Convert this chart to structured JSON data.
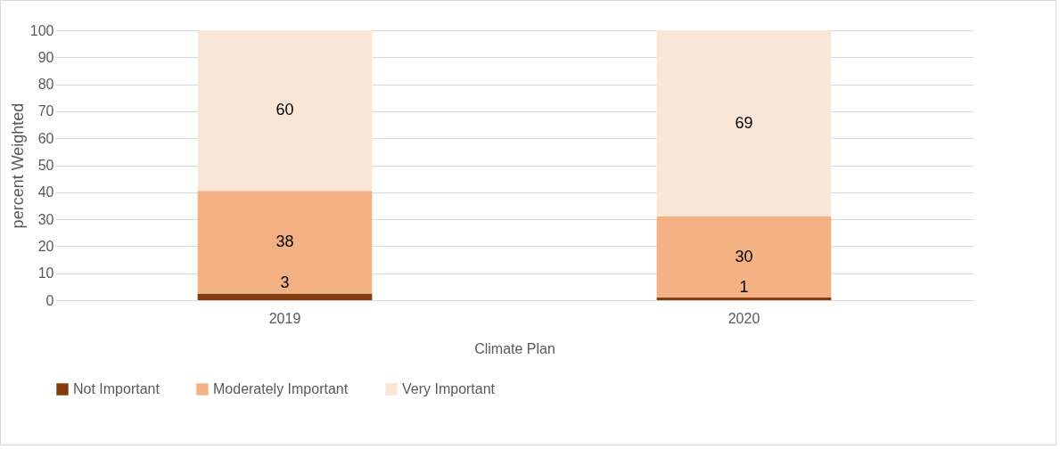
{
  "chart_data": {
    "type": "bar",
    "stacked": true,
    "xlabel": "Climate Plan",
    "ylabel": "percent Weighted",
    "categories": [
      "2019",
      "2020"
    ],
    "series": [
      {
        "name": "Not Important",
        "color": "#843c0c",
        "values": [
          2.5,
          1
        ],
        "value_labels": [
          "3",
          "1"
        ]
      },
      {
        "name": "Moderately Important",
        "color": "#f4b183",
        "values": [
          38,
          30
        ],
        "value_labels": [
          "38",
          "30"
        ]
      },
      {
        "name": "Very Important",
        "color": "#fbe5d6",
        "values": [
          59.5,
          69
        ],
        "value_labels": [
          "60",
          "69"
        ]
      }
    ],
    "ylim": [
      0,
      100
    ],
    "yticks": [
      0,
      10,
      20,
      30,
      40,
      50,
      60,
      70,
      80,
      90,
      100
    ],
    "grid": "y",
    "legend": "bottom"
  }
}
